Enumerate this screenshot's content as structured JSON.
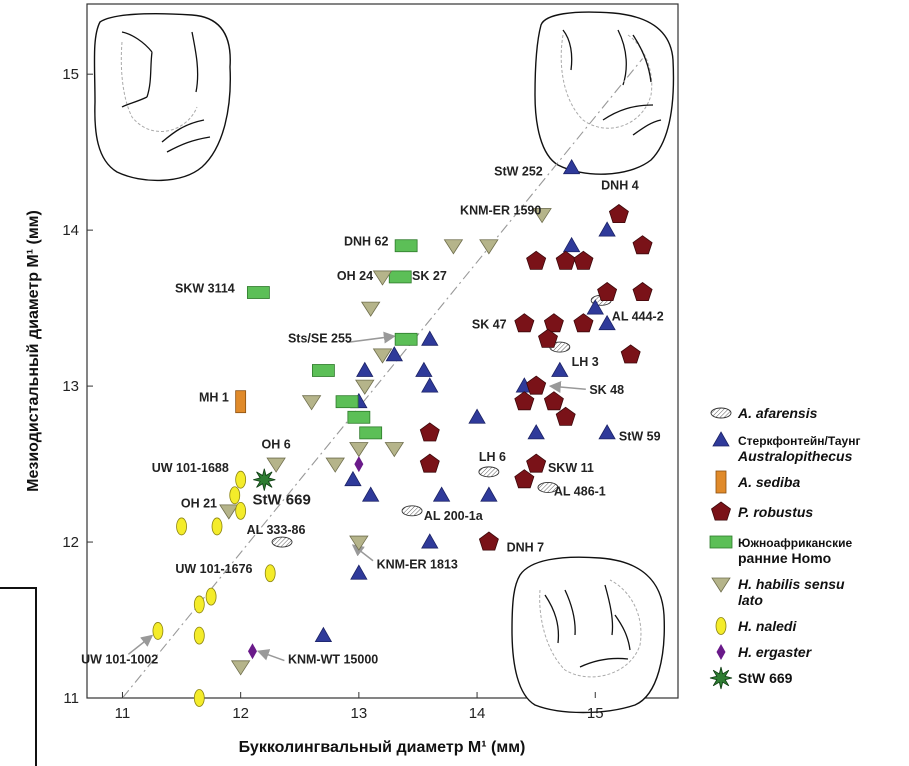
{
  "chart_data": {
    "type": "scatter",
    "xlabel": "Букколингвальный диаметр M¹ (мм)",
    "ylabel": "Мезиодистальный диаметр M¹ (мм)",
    "xlim": [
      10.7,
      15.7
    ],
    "ylim": [
      11,
      15.45
    ],
    "x_ticks": [
      11,
      12,
      13,
      14,
      15
    ],
    "y_ticks": [
      11,
      12,
      13,
      14,
      15
    ],
    "grid": false,
    "legend_position": "right",
    "reference_line": [
      [
        11,
        11
      ],
      [
        15.4,
        15.1
      ]
    ],
    "series": [
      {
        "key": "afarensis",
        "marker": "ellipse-hatched",
        "color": "#ffffff",
        "legend": [
          "A. afarensis"
        ],
        "points": [
          [
            12.35,
            12.0
          ],
          [
            13.45,
            12.2
          ],
          [
            14.1,
            12.45
          ],
          [
            14.6,
            12.35
          ],
          [
            14.7,
            13.25
          ],
          [
            15.05,
            13.55
          ]
        ]
      },
      {
        "key": "australopithecus",
        "marker": "triangle-up",
        "color": "#2f3a9a",
        "legend": [
          "Стеркфонтейн/Таунг",
          "Australopithecus"
        ],
        "points": [
          [
            14.8,
            14.4
          ],
          [
            15.1,
            14.0
          ],
          [
            14.8,
            13.9
          ],
          [
            15.0,
            13.5
          ],
          [
            15.1,
            13.4
          ],
          [
            13.6,
            13.3
          ],
          [
            13.05,
            13.1
          ],
          [
            13.3,
            13.2
          ],
          [
            13.55,
            13.1
          ],
          [
            13.6,
            13.0
          ],
          [
            14.4,
            13.0
          ],
          [
            14.7,
            13.1
          ],
          [
            13.0,
            12.9
          ],
          [
            14.0,
            12.8
          ],
          [
            14.5,
            12.7
          ],
          [
            15.1,
            12.7
          ],
          [
            12.95,
            12.4
          ],
          [
            13.1,
            12.3
          ],
          [
            13.7,
            12.3
          ],
          [
            14.1,
            12.3
          ],
          [
            13.6,
            12.0
          ],
          [
            13.0,
            11.8
          ],
          [
            12.7,
            11.4
          ]
        ]
      },
      {
        "key": "sediba",
        "marker": "rect-vertical",
        "color": "#e08a2a",
        "legend": [
          "A. sediba"
        ],
        "points": [
          [
            12.0,
            12.9
          ]
        ]
      },
      {
        "key": "robustus",
        "marker": "pentagon",
        "color": "#7a1218",
        "legend": [
          "P. robustus"
        ],
        "points": [
          [
            15.2,
            14.1
          ],
          [
            15.4,
            13.9
          ],
          [
            14.5,
            13.8
          ],
          [
            14.75,
            13.8
          ],
          [
            14.9,
            13.8
          ],
          [
            15.1,
            13.6
          ],
          [
            15.4,
            13.6
          ],
          [
            14.4,
            13.4
          ],
          [
            14.65,
            13.4
          ],
          [
            14.9,
            13.4
          ],
          [
            14.6,
            13.3
          ],
          [
            15.3,
            13.2
          ],
          [
            14.5,
            13.0
          ],
          [
            14.4,
            12.9
          ],
          [
            14.65,
            12.9
          ],
          [
            14.75,
            12.8
          ],
          [
            13.6,
            12.7
          ],
          [
            13.6,
            12.5
          ],
          [
            14.5,
            12.5
          ],
          [
            14.4,
            12.4
          ],
          [
            14.1,
            12.0
          ]
        ]
      },
      {
        "key": "early_homo",
        "marker": "rect-horizontal",
        "color": "#5cbf57",
        "legend": [
          "Южноафриканские",
          "ранние Homo"
        ],
        "points": [
          [
            12.15,
            13.6
          ],
          [
            13.4,
            13.9
          ],
          [
            13.35,
            13.7
          ],
          [
            13.4,
            13.3
          ],
          [
            12.7,
            13.1
          ],
          [
            12.9,
            12.9
          ],
          [
            13.0,
            12.8
          ],
          [
            13.1,
            12.7
          ]
        ]
      },
      {
        "key": "habilis",
        "marker": "triangle-down",
        "color": "#b5b48a",
        "legend": [
          "H. habilis sensu",
          "lato"
        ],
        "points": [
          [
            14.55,
            14.1
          ],
          [
            13.8,
            13.9
          ],
          [
            14.1,
            13.9
          ],
          [
            13.2,
            13.7
          ],
          [
            13.1,
            13.5
          ],
          [
            13.2,
            13.2
          ],
          [
            13.05,
            13.0
          ],
          [
            12.6,
            12.9
          ],
          [
            13.0,
            12.6
          ],
          [
            13.3,
            12.6
          ],
          [
            12.8,
            12.5
          ],
          [
            12.3,
            12.5
          ],
          [
            11.9,
            12.2
          ],
          [
            13.0,
            12.0
          ],
          [
            12.0,
            11.2
          ]
        ]
      },
      {
        "key": "naledi",
        "marker": "ellipse-vertical",
        "color": "#f4ec2a",
        "legend": [
          "H. naledi"
        ],
        "points": [
          [
            12.0,
            12.4
          ],
          [
            11.95,
            12.3
          ],
          [
            12.0,
            12.2
          ],
          [
            11.8,
            12.1
          ],
          [
            11.5,
            12.1
          ],
          [
            12.25,
            11.8
          ],
          [
            11.75,
            11.65
          ],
          [
            11.65,
            11.6
          ],
          [
            11.65,
            11.4
          ],
          [
            11.3,
            11.43
          ],
          [
            11.65,
            11.0
          ]
        ]
      },
      {
        "key": "ergaster",
        "marker": "diamond",
        "color": "#6a1a8a",
        "legend": [
          "H. ergaster"
        ],
        "points": [
          [
            13.0,
            12.5
          ],
          [
            12.1,
            11.3
          ]
        ]
      },
      {
        "key": "stw669",
        "marker": "star",
        "color": "#2e7d32",
        "legend": [
          "StW 669"
        ],
        "points": [
          [
            12.2,
            12.4
          ]
        ]
      }
    ],
    "annotations": [
      {
        "text": "StW 252",
        "x": 14.35,
        "y": 14.35,
        "anchor": "middle",
        "size": "normal"
      },
      {
        "text": "DNH 4",
        "x": 15.05,
        "y": 14.26,
        "anchor": "start",
        "size": "normal"
      },
      {
        "text": "KNM-ER 1590",
        "x": 14.2,
        "y": 14.1,
        "anchor": "middle",
        "size": "normal"
      },
      {
        "text": "DNH 62",
        "x": 13.25,
        "y": 13.9,
        "anchor": "end",
        "size": "normal"
      },
      {
        "text": "OH 24",
        "x": 13.12,
        "y": 13.68,
        "anchor": "end",
        "size": "normal"
      },
      {
        "text": "SK 27",
        "x": 13.45,
        "y": 13.68,
        "anchor": "start",
        "size": "normal"
      },
      {
        "text": "SKW 3114",
        "x": 11.95,
        "y": 13.6,
        "anchor": "end",
        "size": "normal"
      },
      {
        "text": "SK 47",
        "x": 14.25,
        "y": 13.37,
        "anchor": "end",
        "size": "normal"
      },
      {
        "text": "AL 444-2",
        "x": 15.14,
        "y": 13.42,
        "anchor": "start",
        "size": "normal"
      },
      {
        "text": "Sts/SE 255",
        "x": 12.4,
        "y": 13.28,
        "anchor": "start",
        "size": "normal"
      },
      {
        "text": "LH 3",
        "x": 14.8,
        "y": 13.13,
        "anchor": "start",
        "size": "normal"
      },
      {
        "text": "SK 48",
        "x": 14.95,
        "y": 12.95,
        "anchor": "start",
        "size": "normal"
      },
      {
        "text": "MH 1",
        "x": 11.9,
        "y": 12.9,
        "anchor": "end",
        "size": "normal"
      },
      {
        "text": "StW 59",
        "x": 15.2,
        "y": 12.65,
        "anchor": "start",
        "size": "normal"
      },
      {
        "text": "OH 6",
        "x": 12.3,
        "y": 12.6,
        "anchor": "middle",
        "size": "normal"
      },
      {
        "text": "LH 6",
        "x": 14.13,
        "y": 12.52,
        "anchor": "middle",
        "size": "normal"
      },
      {
        "text": "UW 101-1688",
        "x": 11.9,
        "y": 12.45,
        "anchor": "end",
        "size": "normal"
      },
      {
        "text": "SKW 11",
        "x": 14.6,
        "y": 12.45,
        "anchor": "start",
        "size": "normal"
      },
      {
        "text": "AL 486-1",
        "x": 14.65,
        "y": 12.3,
        "anchor": "start",
        "size": "normal"
      },
      {
        "text": "StW 669",
        "x": 12.1,
        "y": 12.24,
        "anchor": "start",
        "size": "big"
      },
      {
        "text": "OH 21",
        "x": 11.8,
        "y": 12.22,
        "anchor": "end",
        "size": "normal"
      },
      {
        "text": "AL 200-1a",
        "x": 13.55,
        "y": 12.14,
        "anchor": "start",
        "size": "normal"
      },
      {
        "text": "AL 333-86",
        "x": 12.05,
        "y": 12.05,
        "anchor": "start",
        "size": "normal"
      },
      {
        "text": "DNH 7",
        "x": 14.25,
        "y": 11.94,
        "anchor": "start",
        "size": "normal"
      },
      {
        "text": "UW 101-1676",
        "x": 12.1,
        "y": 11.8,
        "anchor": "end",
        "size": "normal"
      },
      {
        "text": "KNM-ER 1813",
        "x": 13.15,
        "y": 11.83,
        "anchor": "start",
        "size": "normal"
      },
      {
        "text": "UW 101-1002",
        "x": 10.65,
        "y": 11.22,
        "anchor": "start",
        "size": "normal"
      },
      {
        "text": "KNM-WT 15000",
        "x": 12.4,
        "y": 11.22,
        "anchor": "start",
        "size": "normal"
      }
    ],
    "arrows": [
      [
        [
          12.9,
          13.28
        ],
        [
          13.3,
          13.32
        ]
      ],
      [
        [
          14.92,
          12.98
        ],
        [
          14.62,
          13.0
        ]
      ],
      [
        [
          13.12,
          11.88
        ],
        [
          12.95,
          11.98
        ]
      ],
      [
        [
          12.37,
          11.24
        ],
        [
          12.15,
          11.3
        ]
      ],
      [
        [
          11.05,
          11.28
        ],
        [
          11.25,
          11.4
        ]
      ]
    ]
  }
}
